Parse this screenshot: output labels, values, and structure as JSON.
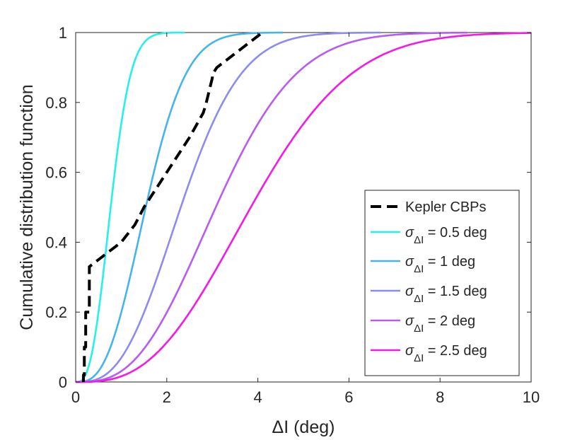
{
  "chart_data": {
    "type": "line",
    "title": "",
    "xlabel": "ΔI (deg)",
    "ylabel": "Cumulative distribution function",
    "xlim": [
      0,
      10
    ],
    "ylim": [
      0,
      1
    ],
    "xticks": [
      0,
      2,
      4,
      6,
      8,
      10
    ],
    "xtick_labels": [
      "0",
      "2",
      "4",
      "6",
      "8",
      "10"
    ],
    "yticks": [
      0,
      0.2,
      0.4,
      0.6,
      0.8,
      1
    ],
    "ytick_labels": [
      "0",
      "0.2",
      "0.4",
      "0.6",
      "0.8",
      "1"
    ],
    "grid": false,
    "legend_position": "bottom-right",
    "series": [
      {
        "name": "Kepler CBPs",
        "legend_main": "Kepler CBPs",
        "legend_sub": "",
        "legend_tail": "",
        "color": "#000000",
        "dashed": true,
        "x": [
          0.17,
          0.17,
          0.19,
          0.19,
          0.22,
          0.22,
          0.3,
          0.3,
          1.0,
          1.3,
          1.5,
          2.0,
          2.5,
          2.8,
          2.85,
          3.0,
          3.0,
          3.1,
          3.5,
          3.8,
          4.1
        ],
        "y": [
          0.0,
          0.02,
          0.02,
          0.1,
          0.1,
          0.2,
          0.2,
          0.33,
          0.4,
          0.45,
          0.5,
          0.6,
          0.7,
          0.77,
          0.79,
          0.87,
          0.88,
          0.9,
          0.94,
          0.97,
          1.0
        ]
      },
      {
        "name": "σΔI = 0.5 deg",
        "legend_main": "σ",
        "legend_sub": "ΔI",
        "legend_tail": " = 0.5 deg",
        "color": "#27f0ea",
        "sigma": 0.5,
        "xmax": 2.4
      },
      {
        "name": "σΔI = 1 deg",
        "legend_main": "σ",
        "legend_sub": "ΔI",
        "legend_tail": " = 1 deg",
        "color": "#46b4ec",
        "sigma": 1.0,
        "xmax": 4.55
      },
      {
        "name": "σΔI = 1.5 deg",
        "legend_main": "σ",
        "legend_sub": "ΔI",
        "legend_tail": " = 1.5 deg",
        "color": "#8c8cee",
        "sigma": 1.5,
        "xmax": 6.7
      },
      {
        "name": "σΔI = 2 deg",
        "legend_main": "σ",
        "legend_sub": "ΔI",
        "legend_tail": " = 2 deg",
        "color": "#b65cf0",
        "sigma": 2.0,
        "xmax": 8.6
      },
      {
        "name": "σΔI = 2.5 deg",
        "legend_main": "σ",
        "legend_sub": "ΔI",
        "legend_tail": " = 2.5 deg",
        "color": "#f319e6",
        "sigma": 2.5,
        "xmax": 10.0
      }
    ]
  }
}
